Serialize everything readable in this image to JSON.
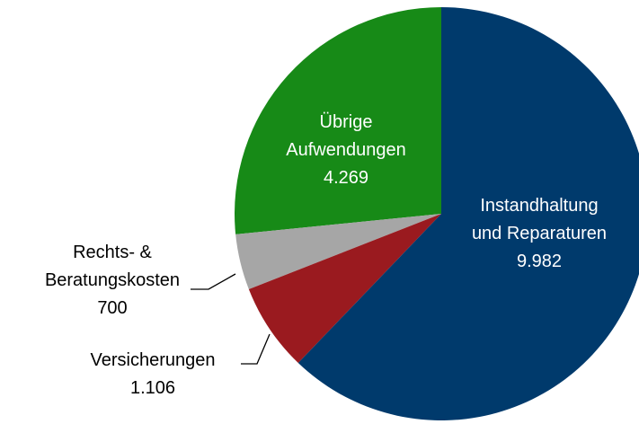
{
  "chart_data": {
    "type": "pie",
    "categories": [
      "Instandhaltung und Reparaturen",
      "Versicherungen",
      "Rechts- & Beratungskosten",
      "Übrige Aufwendungen"
    ],
    "values": [
      9982,
      1106,
      700,
      4269
    ],
    "value_labels": [
      "9.982",
      "1.106",
      "700",
      "4.269"
    ],
    "colors": [
      "#003a6c",
      "#9a1a1f",
      "#a6a6a6",
      "#178a17"
    ],
    "start_angle": 0,
    "direction": "clockwise"
  }
}
